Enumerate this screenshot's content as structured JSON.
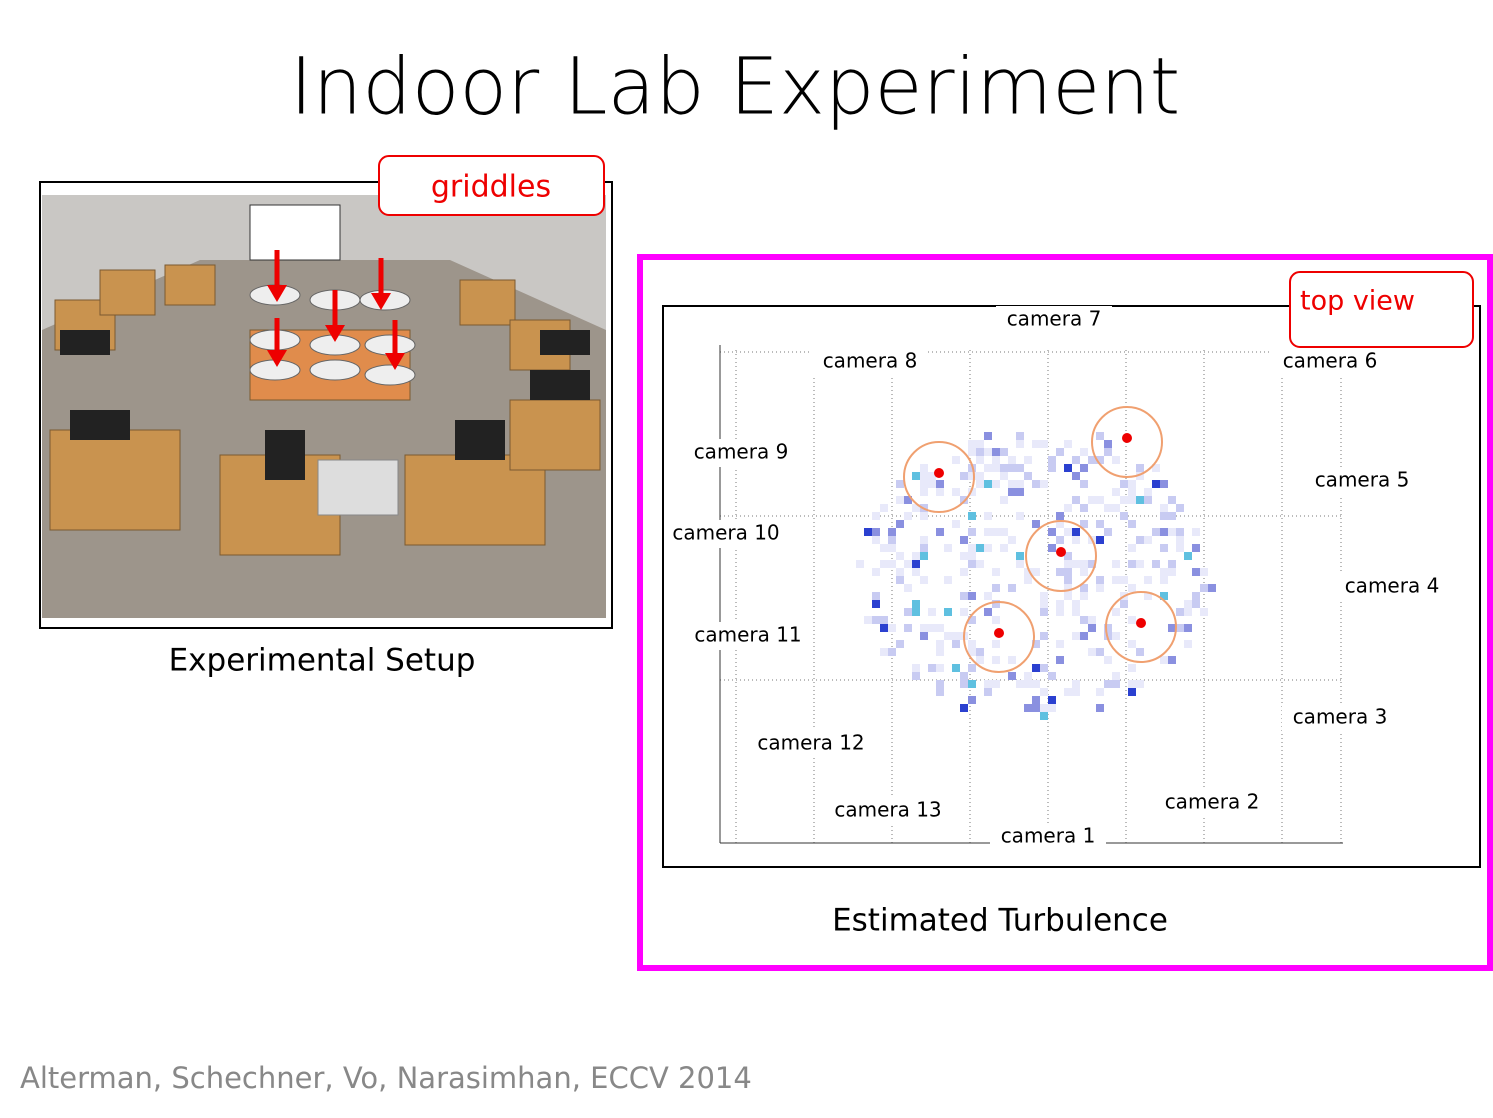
{
  "title": "Indoor Lab Experiment",
  "setup": {
    "callout": "griddles",
    "caption": "Experimental Setup"
  },
  "turbulence": {
    "callout": "top view",
    "caption": "Estimated Turbulence",
    "cameras": [
      "camera 1",
      "camera 2",
      "camera 3",
      "camera 4",
      "camera 5",
      "camera 6",
      "camera 7",
      "camera 8",
      "camera 9",
      "camera 10",
      "camera 11",
      "camera 12",
      "camera 13"
    ]
  },
  "citation": "Alterman,  Schechner,  Vo,  Narasimhan,  ECCV 2014"
}
